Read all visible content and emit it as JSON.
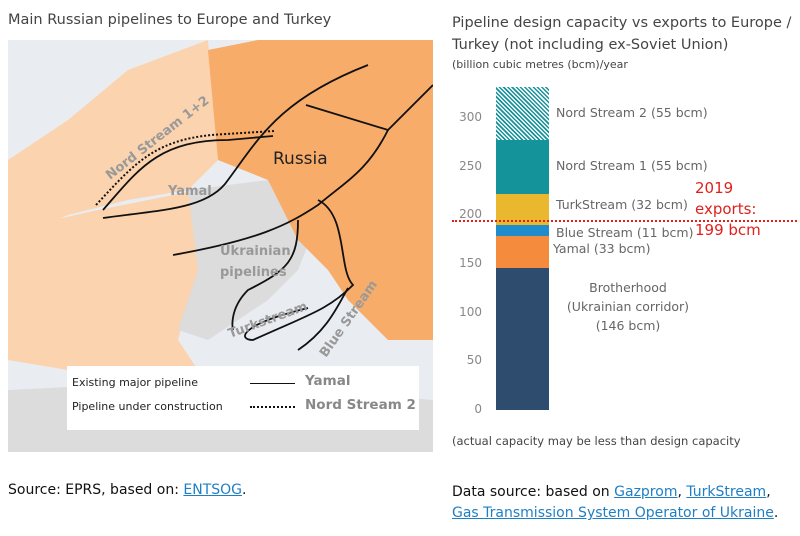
{
  "map": {
    "title": "Main Russian pipelines to Europe and Turkey",
    "labels": {
      "russia": "Russia",
      "nord_stream": "Nord Stream 1+2",
      "yamal": "Yamal",
      "ukrainian": "Ukrainian",
      "pipelines": "pipelines",
      "turkstream": "Turkstream",
      "blue_stream": "Blue Stream"
    },
    "legend": [
      {
        "text": "Existing major pipeline",
        "example": "Yamal",
        "style": "solid"
      },
      {
        "text": "Pipeline under construction",
        "example": "Nord Stream 2",
        "style": "dotted"
      }
    ],
    "colors": {
      "russia": "#f8ac6a",
      "europe": "#fbd3ae",
      "other": "#dcdcdc",
      "sea": "#e9edf2"
    }
  },
  "source": {
    "prefix": "Source: EPRS, based on: ",
    "link": "ENTSOG",
    "suffix": "."
  },
  "chart_data": {
    "type": "bar",
    "stacked": true,
    "title": "Pipeline design capacity vs exports to Europe / Turkey (not including ex-Soviet Union)",
    "title_line1": "Pipeline design capacity vs exports to Europe /",
    "title_line2": "Turkey (not including ex-Soviet Union)",
    "ylabel": "(billion cubic metres (bcm)/year",
    "ylim": [
      0,
      335
    ],
    "yticks": [
      0,
      50,
      100,
      150,
      200,
      250,
      300
    ],
    "grid": false,
    "series": [
      {
        "name": "Brotherhood (Ukrainian corridor) (146 bcm)",
        "label_lines": [
          "Brotherhood",
          "(Ukrainian corridor)",
          "(146 bcm)"
        ],
        "value": 146,
        "color": "#2e4d6e"
      },
      {
        "name": "Yamal (33 bcm)",
        "value": 33,
        "color": "#f58b3c"
      },
      {
        "name": "Blue Stream (11 bcm)",
        "value": 11,
        "color": "#1f8ccc"
      },
      {
        "name": "TurkStream (32 bcm)",
        "value": 32,
        "color": "#eab82e"
      },
      {
        "name": "Nord Stream 1 (55 bcm)",
        "value": 55,
        "color": "#14939a"
      },
      {
        "name": "Nord Stream 2 (55 bcm)",
        "value": 55,
        "color": "#14939a",
        "pattern": "hatched"
      }
    ],
    "reference_line": {
      "value": 199,
      "lines": [
        "2019",
        "exports:",
        "199 bcm"
      ],
      "color": "#e0201e",
      "style": "dotted"
    },
    "note": "(actual capacity may be less than design capacity"
  },
  "data_source": {
    "prefix": "Data source: based on ",
    "links": [
      "Gazprom",
      "TurkStream",
      "Gas Transmission System Operator of Ukraine"
    ]
  }
}
